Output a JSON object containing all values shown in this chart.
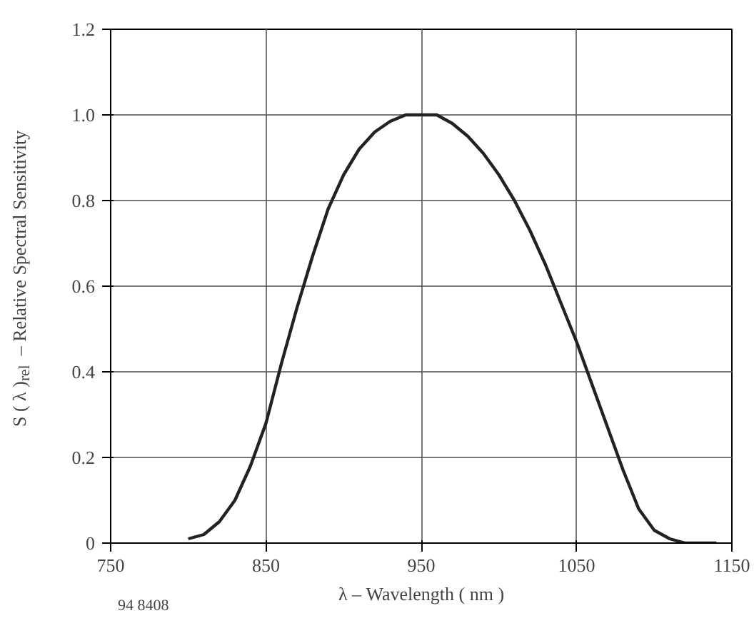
{
  "chart_data": {
    "type": "line",
    "xlabel": "λ – Wavelength ( nm )",
    "ylabel": "S ( λ )$_{rel}$  – Relative Spectral Sensitivity",
    "annotations": [
      "94 8408"
    ],
    "x": [
      800,
      810,
      820,
      830,
      840,
      850,
      860,
      870,
      880,
      890,
      900,
      910,
      920,
      930,
      940,
      950,
      960,
      970,
      980,
      990,
      1000,
      1010,
      1020,
      1030,
      1040,
      1050,
      1060,
      1070,
      1080,
      1090,
      1100,
      1110,
      1120,
      1140
    ],
    "series": [
      {
        "color": "#222222",
        "values": [
          0.01,
          0.02,
          0.05,
          0.1,
          0.18,
          0.28,
          0.42,
          0.55,
          0.67,
          0.78,
          0.86,
          0.92,
          0.96,
          0.985,
          1.0,
          1.0,
          1.0,
          0.98,
          0.95,
          0.91,
          0.86,
          0.8,
          0.73,
          0.65,
          0.56,
          0.47,
          0.37,
          0.27,
          0.17,
          0.08,
          0.03,
          0.01,
          0.0,
          0.0
        ]
      }
    ],
    "xlim": [
      750,
      1150
    ],
    "ylim": [
      0,
      1.2
    ],
    "xticks": [
      750,
      850,
      950,
      1050,
      1150
    ],
    "yticks": [
      {
        "value": 0,
        "label": "0"
      },
      0.2,
      0.4,
      0.6,
      0.8,
      {
        "value": 1.0,
        "label": "1.0"
      },
      1.2
    ],
    "grid": true,
    "line_style": "solid"
  }
}
